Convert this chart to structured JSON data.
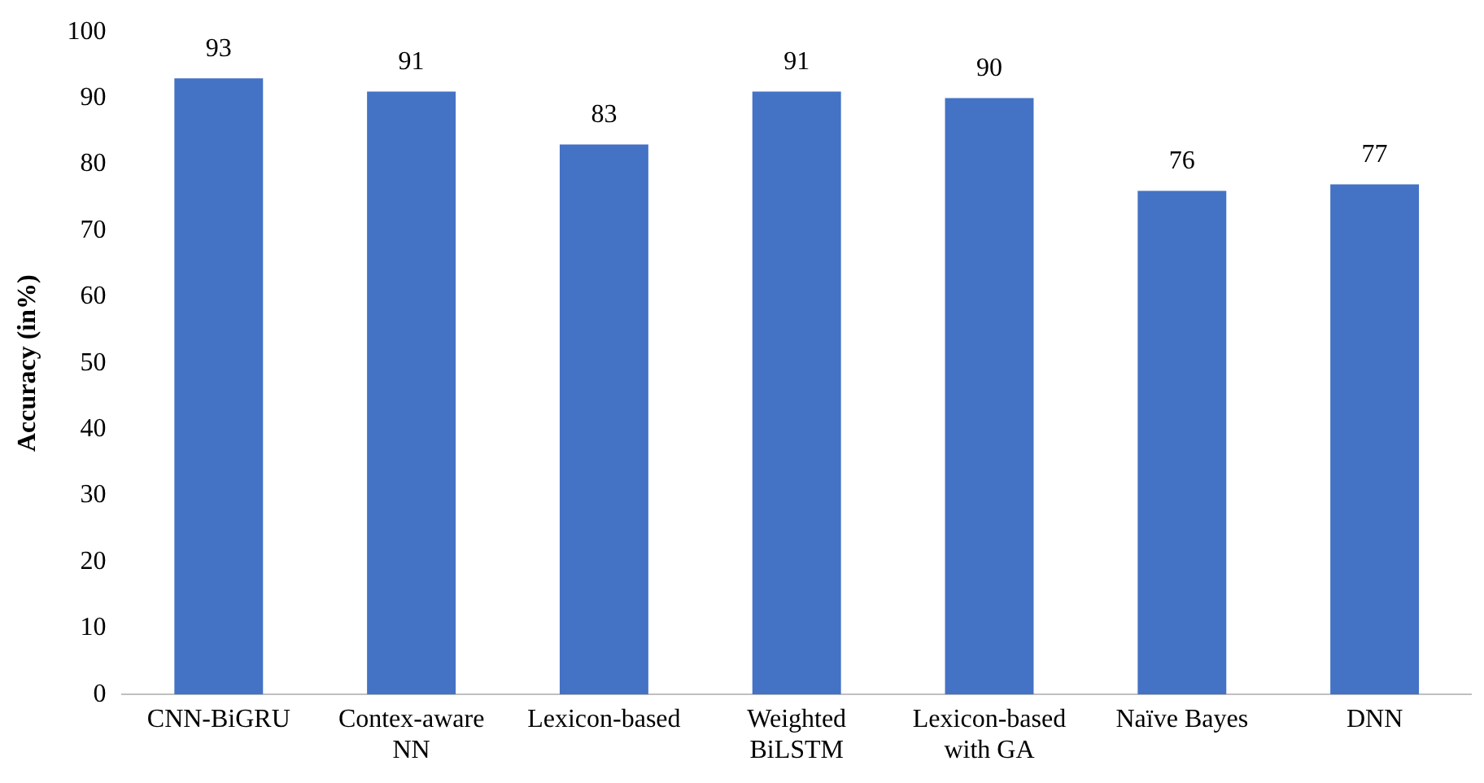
{
  "chart_data": {
    "type": "bar",
    "ylabel": "Accuracy (in%)",
    "categories": [
      "CNN-BiGRU",
      "Contex-aware\nNN",
      "Lexicon-based",
      "Weighted\nBiLSTM",
      "Lexicon-based\nwith GA",
      "Naïve Bayes",
      "DNN"
    ],
    "values": [
      93,
      91,
      83,
      91,
      90,
      76,
      77
    ],
    "color": "#4472c4",
    "ylim": [
      0,
      100
    ],
    "yticks": [
      0,
      10,
      20,
      30,
      40,
      50,
      60,
      70,
      80,
      90,
      100
    ],
    "grid": false,
    "data_labels": true
  }
}
